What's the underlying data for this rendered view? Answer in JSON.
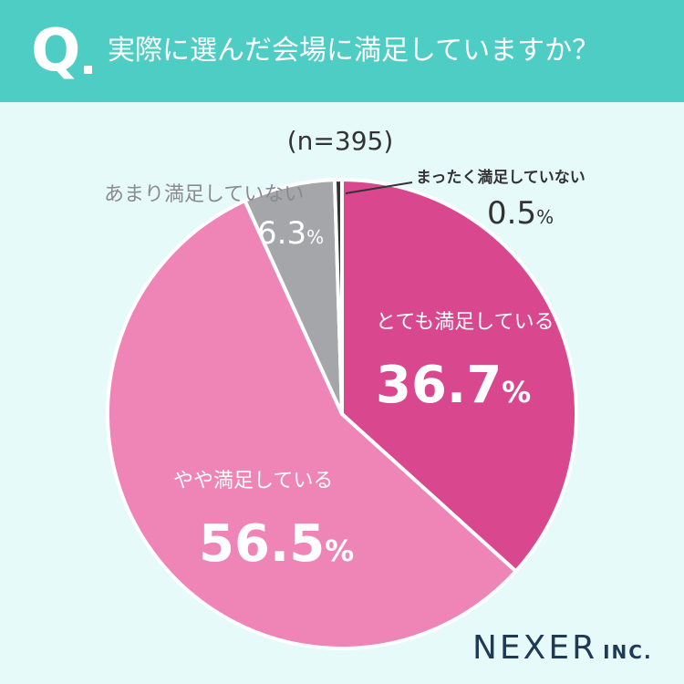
{
  "header": {
    "q_letter": "Q",
    "question": "実際に選んだ会場に満足していますか？"
  },
  "sample_size": "(n=395)",
  "chart_data": {
    "type": "pie",
    "slices": [
      {
        "label": "とても満足している",
        "value": 36.7,
        "display": "36.7",
        "color": "#d9488e"
      },
      {
        "label": "やや満足している",
        "value": 56.5,
        "display": "56.5",
        "color": "#ef85b6"
      },
      {
        "label": "あまり満足していない",
        "value": 6.3,
        "display": "6.3",
        "color": "#a5a6aa"
      },
      {
        "label": "まったく満足していない",
        "value": 0.5,
        "display": "0.5",
        "color": "#333333"
      }
    ],
    "unit": "%"
  },
  "logo": {
    "name": "NEXER",
    "suffix": "INC."
  }
}
